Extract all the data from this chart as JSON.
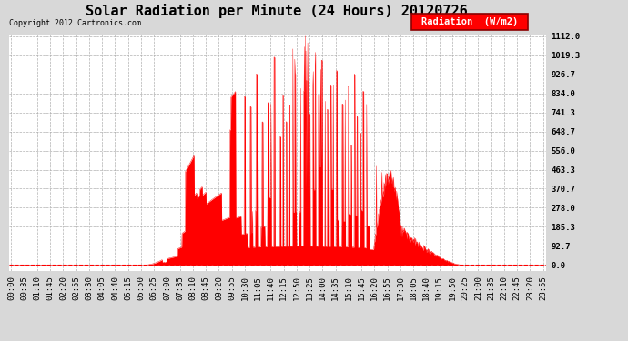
{
  "title": "Solar Radiation per Minute (24 Hours) 20120726",
  "copyright_text": "Copyright 2012 Cartronics.com",
  "legend_label": "Radiation  (W/m2)",
  "yticks": [
    0.0,
    92.7,
    185.3,
    278.0,
    370.7,
    463.3,
    556.0,
    648.7,
    741.3,
    834.0,
    926.7,
    1019.3,
    1112.0
  ],
  "ymax": 1112.0,
  "ymin": 0.0,
  "bar_color": "#FF0000",
  "background_color": "#D8D8D8",
  "plot_bg_color": "#FFFFFF",
  "grid_color": "#AAAAAA",
  "title_fontsize": 11,
  "axis_fontsize": 6.5,
  "legend_fontsize": 7.5,
  "xlabel_rotation": 90,
  "dashed_line_color": "#FF0000"
}
